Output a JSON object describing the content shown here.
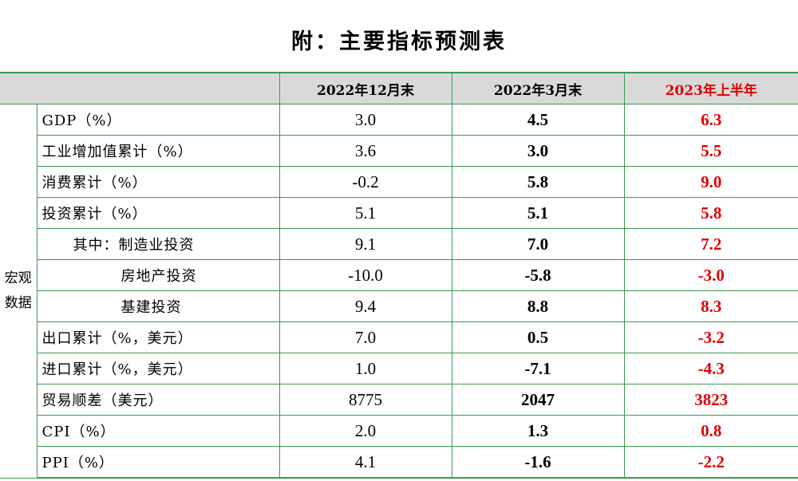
{
  "title": "附：主要指标预测表",
  "header": {
    "col1": "2022年12月末",
    "col2": "2022年3月末",
    "col3": "2023年上半年"
  },
  "category": {
    "line1": "宏观",
    "line2": "数据"
  },
  "rows": [
    {
      "label": "GDP（%）",
      "v1": "3.0",
      "v2": "4.5",
      "v3": "6.3"
    },
    {
      "label": "工业增加值累计（%）",
      "v1": "3.6",
      "v2": "3.0",
      "v3": "5.5"
    },
    {
      "label": "消费累计（%）",
      "v1": "-0.2",
      "v2": "5.8",
      "v3": "9.0"
    },
    {
      "label": "投资累计（%）",
      "v1": "5.1",
      "v2": "5.1",
      "v3": "5.8"
    },
    {
      "label": "其中：制造业投资",
      "v1": "9.1",
      "v2": "7.0",
      "v3": "7.2"
    },
    {
      "label": "房地产投资",
      "v1": "-10.0",
      "v2": "-5.8",
      "v3": "-3.0"
    },
    {
      "label": "基建投资",
      "v1": "9.4",
      "v2": "8.8",
      "v3": "8.3"
    },
    {
      "label": "出口累计（%，美元）",
      "v1": "7.0",
      "v2": "0.5",
      "v3": "-3.2"
    },
    {
      "label": "进口累计（%，美元）",
      "v1": "1.0",
      "v2": "-7.1",
      "v3": "-4.3"
    },
    {
      "label": "贸易顺差（美元）",
      "v1": "8775",
      "v2": "2047",
      "v3": "3823"
    },
    {
      "label": "CPI（%）",
      "v1": "2.0",
      "v2": "1.3",
      "v3": "0.8"
    },
    {
      "label": "PPI（%）",
      "v1": "4.1",
      "v2": "-1.6",
      "v3": "-2.2"
    }
  ],
  "colors": {
    "border": "#3a9a50",
    "header_bg": "#d9d9d9",
    "highlight": "#e00000"
  }
}
